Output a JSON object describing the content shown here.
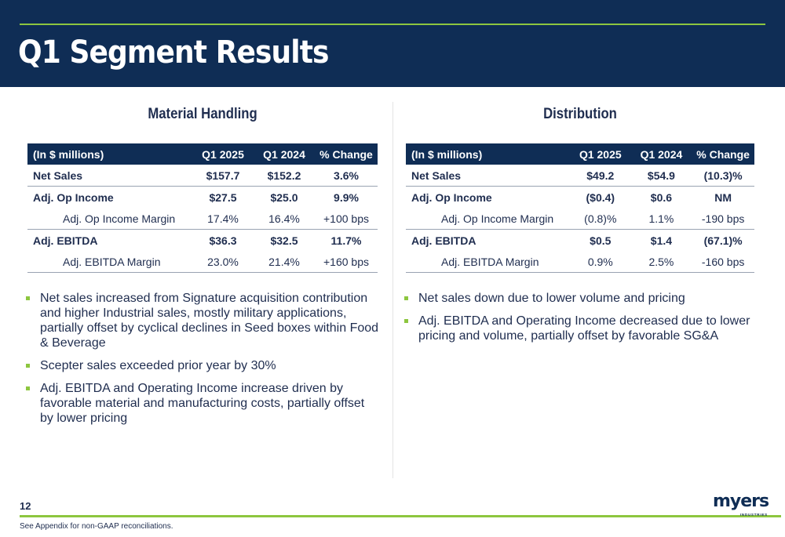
{
  "slide": {
    "title": "Q1 Segment Results",
    "page_number": "12",
    "footnote": "See Appendix for non-GAAP reconciliations.",
    "logo": {
      "word": "myers",
      "sub": "INDUSTRIES"
    }
  },
  "material_handling": {
    "title": "Material Handling",
    "headers": [
      "(In $ millions)",
      "Q1 2025",
      "Q1 2024",
      "% Change"
    ],
    "rows": [
      [
        "Net Sales",
        "$157.7",
        "$152.2",
        "3.6%"
      ],
      [
        "Adj. Op Income",
        "$27.5",
        "$25.0",
        "9.9%"
      ],
      [
        "Adj. Op Income Margin",
        "17.4%",
        "16.4%",
        "+100 bps"
      ],
      [
        "Adj. EBITDA",
        "$36.3",
        "$32.5",
        "11.7%"
      ],
      [
        "Adj. EBITDA Margin",
        "23.0%",
        "21.4%",
        "+160 bps"
      ]
    ],
    "bullets": [
      "Net sales increased from Signature acquisition contribution and higher Industrial sales, mostly military applications, partially offset by cyclical declines in Seed boxes within Food & Beverage",
      "Scepter sales exceeded prior year by 30%",
      "Adj. EBITDA and Operating Income increase driven by favorable material and manufacturing costs, partially offset by lower pricing"
    ]
  },
  "distribution": {
    "title": "Distribution",
    "headers": [
      "(In $ millions)",
      "Q1 2025",
      "Q1 2024",
      "% Change"
    ],
    "rows": [
      [
        "Net Sales",
        "$49.2",
        "$54.9",
        "(10.3)%"
      ],
      [
        "Adj. Op Income",
        "($0.4)",
        "$0.6",
        "NM"
      ],
      [
        "Adj. Op Income Margin",
        "(0.8)%",
        "1.1%",
        "-190 bps"
      ],
      [
        "Adj. EBITDA",
        "$0.5",
        "$1.4",
        "(67.1)%"
      ],
      [
        "Adj. EBITDA Margin",
        "0.9%",
        "2.5%",
        "-160 bps"
      ]
    ],
    "bullets": [
      "Net sales down due to lower volume and pricing",
      "Adj. EBITDA and Operating Income decreased due to lower pricing and volume, partially offset by favorable SG&A"
    ]
  },
  "colors": {
    "navy": "#0f2d55",
    "accent_green": "#8dc63f",
    "text": "#1f2d4f"
  }
}
